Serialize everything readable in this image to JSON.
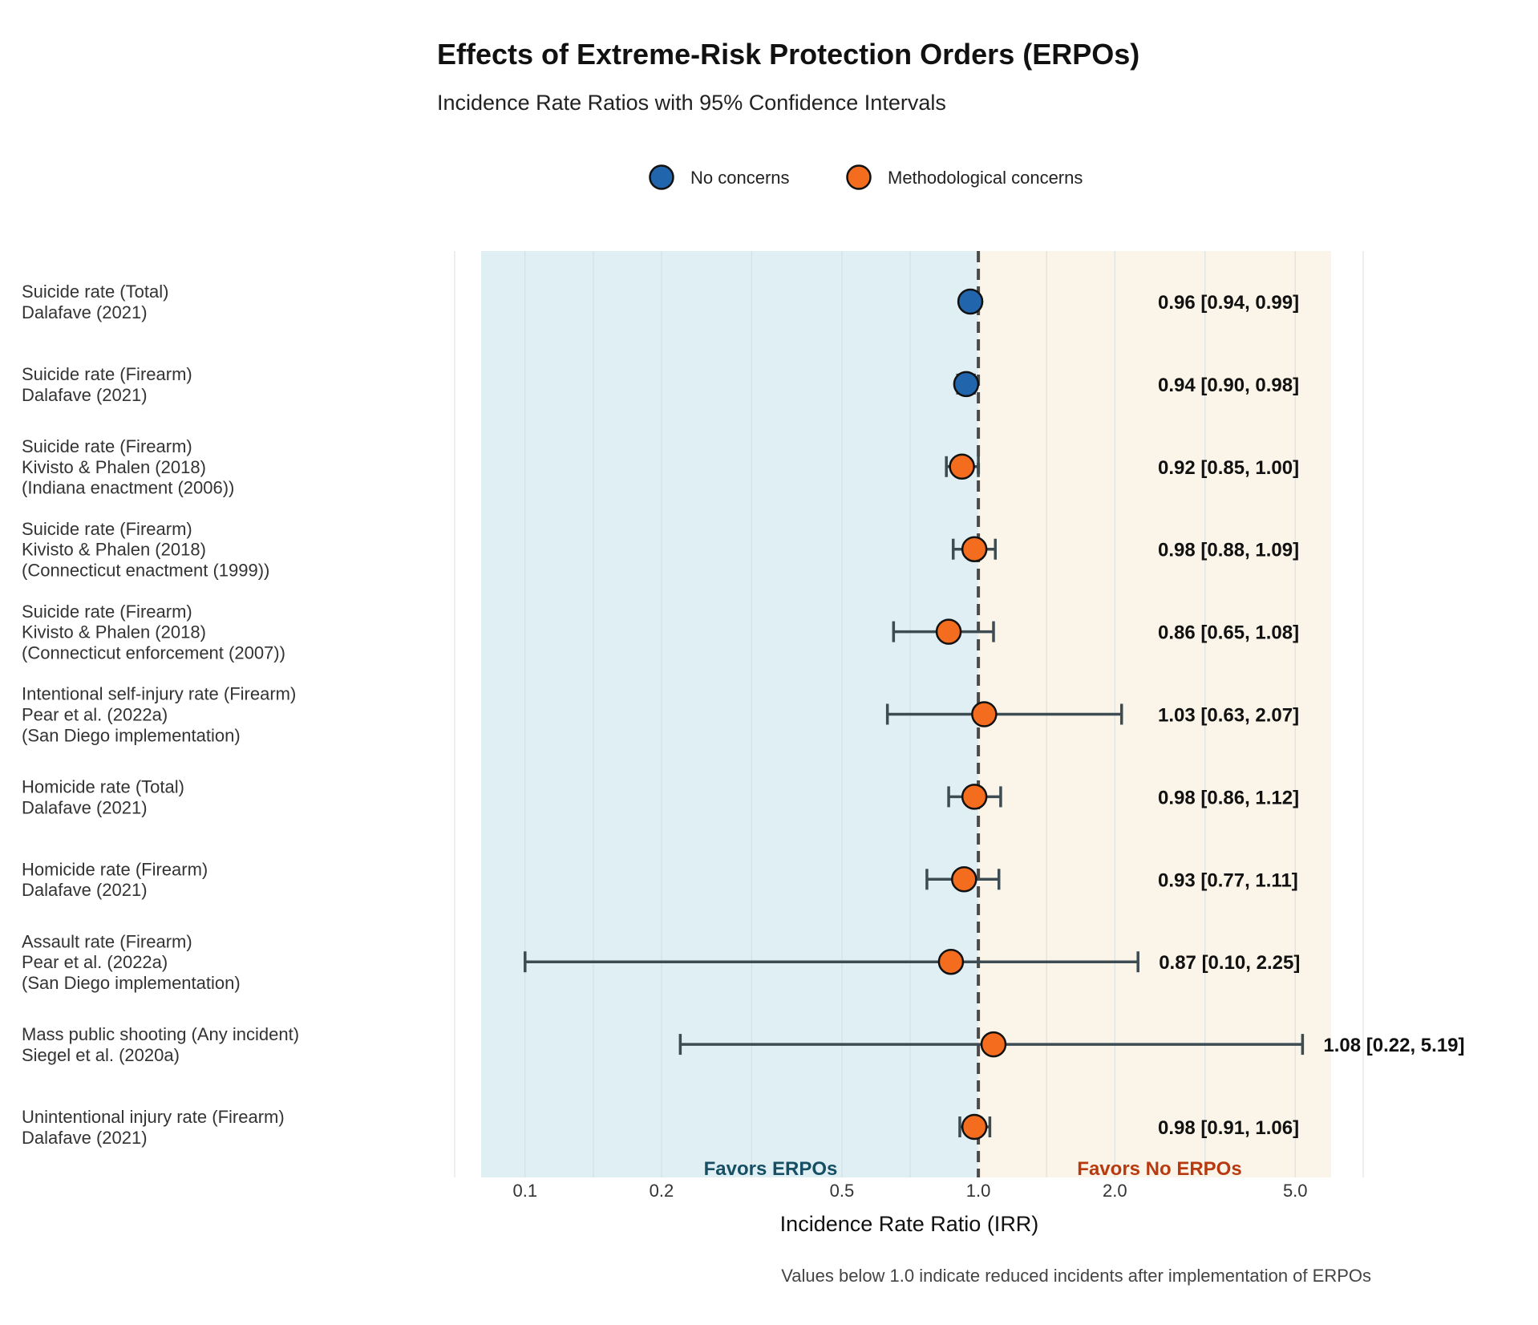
{
  "chart_data": {
    "type": "scatter",
    "subtype": "forest-plot",
    "title": "Effects of Extreme-Risk Protection Orders (ERPOs)",
    "subtitle": "Incidence Rate Ratios with 95% Confidence Intervals",
    "xlabel": "Incidence Rate Ratio (IRR)",
    "x_scale": "log",
    "xlim": [
      0.08,
      6.0
    ],
    "x_ticks": [
      {
        "value": 0.1,
        "label": "0.1"
      },
      {
        "value": 0.2,
        "label": "0.2"
      },
      {
        "value": 0.5,
        "label": "0.5"
      },
      {
        "value": 1.0,
        "label": "1.0"
      },
      {
        "value": 2.0,
        "label": "2.0"
      },
      {
        "value": 5.0,
        "label": "5.0"
      }
    ],
    "reference_line": 1.0,
    "grid": true,
    "legend_position": "top-center",
    "legend": [
      {
        "name": "No concerns",
        "color": "#2166ac"
      },
      {
        "name": "Methodological concerns",
        "color": "#f46d1e"
      }
    ],
    "regions": {
      "left_label": "Favors ERPOs",
      "right_label": "Favors No ERPOs",
      "left_color": "#e0eff4",
      "right_color": "#fbf4e8"
    },
    "caption": "Values below 1.0 indicate reduced incidents after implementation of ERPOs",
    "rows": [
      {
        "label_lines": [
          "Suicide rate (Total)",
          "Dalafave (2021)"
        ],
        "irr": 0.96,
        "lo": 0.94,
        "hi": 0.99,
        "value_label": "0.96 [0.94, 0.99]",
        "group": "No concerns"
      },
      {
        "label_lines": [
          "Suicide rate (Firearm)",
          "Dalafave (2021)"
        ],
        "irr": 0.94,
        "lo": 0.9,
        "hi": 0.98,
        "value_label": "0.94 [0.90, 0.98]",
        "group": "No concerns"
      },
      {
        "label_lines": [
          "Suicide rate (Firearm)",
          "Kivisto & Phalen (2018)",
          "(Indiana enactment (2006))"
        ],
        "irr": 0.92,
        "lo": 0.85,
        "hi": 1.0,
        "value_label": "0.92 [0.85, 1.00]",
        "group": "Methodological concerns"
      },
      {
        "label_lines": [
          "Suicide rate (Firearm)",
          "Kivisto & Phalen (2018)",
          "(Connecticut enactment (1999))"
        ],
        "irr": 0.98,
        "lo": 0.88,
        "hi": 1.09,
        "value_label": "0.98 [0.88, 1.09]",
        "group": "Methodological concerns"
      },
      {
        "label_lines": [
          "Suicide rate (Firearm)",
          "Kivisto & Phalen (2018)",
          "(Connecticut enforcement (2007))"
        ],
        "irr": 0.86,
        "lo": 0.65,
        "hi": 1.08,
        "value_label": "0.86 [0.65, 1.08]",
        "group": "Methodological concerns"
      },
      {
        "label_lines": [
          "Intentional self-injury rate (Firearm)",
          "Pear et al. (2022a)",
          "(San Diego implementation)"
        ],
        "irr": 1.03,
        "lo": 0.63,
        "hi": 2.07,
        "value_label": "1.03 [0.63, 2.07]",
        "group": "Methodological concerns"
      },
      {
        "label_lines": [
          "Homicide rate (Total)",
          "Dalafave (2021)"
        ],
        "irr": 0.98,
        "lo": 0.86,
        "hi": 1.12,
        "value_label": "0.98 [0.86, 1.12]",
        "group": "Methodological concerns"
      },
      {
        "label_lines": [
          "Homicide rate (Firearm)",
          "Dalafave (2021)"
        ],
        "irr": 0.93,
        "lo": 0.77,
        "hi": 1.11,
        "value_label": "0.93 [0.77, 1.11]",
        "group": "Methodological concerns"
      },
      {
        "label_lines": [
          "Assault rate (Firearm)",
          "Pear et al. (2022a)",
          "(San Diego implementation)"
        ],
        "irr": 0.87,
        "lo": 0.1,
        "hi": 2.25,
        "value_label": "0.87 [0.10, 2.25]",
        "group": "Methodological concerns"
      },
      {
        "label_lines": [
          "Mass public shooting (Any incident)",
          "Siegel et al. (2020a)"
        ],
        "irr": 1.08,
        "lo": 0.22,
        "hi": 5.19,
        "value_label": "1.08 [0.22, 5.19]",
        "group": "Methodological concerns"
      },
      {
        "label_lines": [
          "Unintentional injury rate (Firearm)",
          "Dalafave (2021)"
        ],
        "irr": 0.98,
        "lo": 0.91,
        "hi": 1.06,
        "value_label": "0.98 [0.91, 1.06]",
        "group": "Methodological concerns"
      }
    ]
  }
}
